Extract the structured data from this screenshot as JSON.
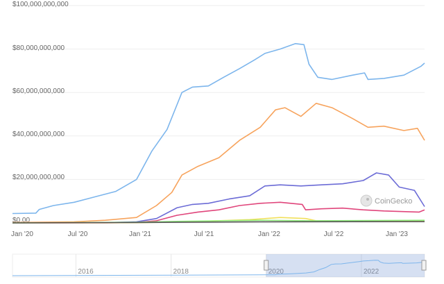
{
  "chart_data": {
    "type": "line",
    "title": "",
    "xlabel": "",
    "ylabel": "",
    "x_ticks": [
      "Jan '20",
      "Jul '20",
      "Jan '21",
      "Jul '21",
      "Jan '22",
      "Jul '22",
      "Jan '23"
    ],
    "y_ticks": [
      "$0.00",
      "$20,000,000,000",
      "$40,000,000,000",
      "$60,000,000,000",
      "$80,000,000,000",
      "$100,000,000,000"
    ],
    "ylim": [
      0,
      100000000000
    ],
    "xlim": [
      "2020-01-01",
      "2023-05-01"
    ],
    "grid": true,
    "legend": "none",
    "series": [
      {
        "color": "#7cb5ec",
        "points": [
          [
            "2020-01-01",
            4300000000.0
          ],
          [
            "2020-03-10",
            4500000000.0
          ],
          [
            "2020-03-20",
            6200000000.0
          ],
          [
            "2020-05-01",
            8000000000.0
          ],
          [
            "2020-07-01",
            9500000000.0
          ],
          [
            "2020-09-01",
            12000000000.0
          ],
          [
            "2020-11-01",
            14500000000.0
          ],
          [
            "2021-01-01",
            20000000000.0
          ],
          [
            "2021-02-15",
            33000000000.0
          ],
          [
            "2021-04-01",
            43000000000.0
          ],
          [
            "2021-05-15",
            60000000000.0
          ],
          [
            "2021-06-15",
            62500000000.0
          ],
          [
            "2021-08-01",
            63000000000.0
          ],
          [
            "2021-09-15",
            67000000000.0
          ],
          [
            "2021-11-01",
            71000000000.0
          ],
          [
            "2021-12-15",
            75000000000.0
          ],
          [
            "2022-01-15",
            78000000000.0
          ],
          [
            "2022-03-01",
            80000000000.0
          ],
          [
            "2022-04-15",
            82500000000.0
          ],
          [
            "2022-05-10",
            82000000000.0
          ],
          [
            "2022-05-25",
            73000000000.0
          ],
          [
            "2022-06-20",
            67000000000.0
          ],
          [
            "2022-08-01",
            66000000000.0
          ],
          [
            "2022-10-01",
            68000000000.0
          ],
          [
            "2022-11-05",
            69000000000.0
          ],
          [
            "2022-11-15",
            66000000000.0
          ],
          [
            "2023-01-01",
            66500000000.0
          ],
          [
            "2023-03-01",
            68000000000.0
          ],
          [
            "2023-04-20",
            72000000000.0
          ],
          [
            "2023-05-01",
            73500000000.0
          ]
        ]
      },
      {
        "color": "#f7a35c",
        "points": [
          [
            "2020-01-01",
            200000000.0
          ],
          [
            "2020-07-01",
            500000000.0
          ],
          [
            "2020-10-01",
            1200000000.0
          ],
          [
            "2021-01-01",
            2500000000.0
          ],
          [
            "2021-03-01",
            8000000000.0
          ],
          [
            "2021-04-15",
            14000000000.0
          ],
          [
            "2021-05-15",
            22000000000.0
          ],
          [
            "2021-07-01",
            26000000000.0
          ],
          [
            "2021-09-01",
            30000000000.0
          ],
          [
            "2021-11-01",
            38000000000.0
          ],
          [
            "2022-01-01",
            44000000000.0
          ],
          [
            "2022-02-15",
            52000000000.0
          ],
          [
            "2022-03-15",
            53000000000.0
          ],
          [
            "2022-05-01",
            49000000000.0
          ],
          [
            "2022-06-15",
            55000000000.0
          ],
          [
            "2022-08-01",
            53000000000.0
          ],
          [
            "2022-10-01",
            48000000000.0
          ],
          [
            "2022-11-15",
            44000000000.0
          ],
          [
            "2023-01-01",
            44500000000.0
          ],
          [
            "2023-03-01",
            42500000000.0
          ],
          [
            "2023-04-10",
            43500000000.0
          ],
          [
            "2023-05-01",
            38000000000.0
          ]
        ]
      },
      {
        "color": "#6b6bd6",
        "points": [
          [
            "2020-01-01",
            0.0
          ],
          [
            "2020-10-01",
            100000000.0
          ],
          [
            "2021-01-01",
            500000000.0
          ],
          [
            "2021-03-01",
            2000000000.0
          ],
          [
            "2021-05-01",
            7000000000.0
          ],
          [
            "2021-06-15",
            8500000000.0
          ],
          [
            "2021-08-01",
            9000000000.0
          ],
          [
            "2021-10-01",
            11000000000.0
          ],
          [
            "2021-12-01",
            12500000000.0
          ],
          [
            "2022-01-15",
            17000000000.0
          ],
          [
            "2022-03-01",
            17500000000.0
          ],
          [
            "2022-05-01",
            17000000000.0
          ],
          [
            "2022-07-01",
            17500000000.0
          ],
          [
            "2022-09-01",
            18000000000.0
          ],
          [
            "2022-11-01",
            19500000000.0
          ],
          [
            "2022-12-10",
            23000000000.0
          ],
          [
            "2023-01-15",
            22000000000.0
          ],
          [
            "2023-02-15",
            16500000000.0
          ],
          [
            "2023-04-01",
            15000000000.0
          ],
          [
            "2023-05-01",
            7500000000.0
          ]
        ]
      },
      {
        "color": "#e0457b",
        "points": [
          [
            "2020-01-01",
            0.0
          ],
          [
            "2020-10-01",
            0.0
          ],
          [
            "2021-01-01",
            200000000.0
          ],
          [
            "2021-03-01",
            1000000000.0
          ],
          [
            "2021-05-01",
            3500000000.0
          ],
          [
            "2021-07-01",
            5000000000.0
          ],
          [
            "2021-09-01",
            6000000000.0
          ],
          [
            "2021-11-01",
            8000000000.0
          ],
          [
            "2022-01-01",
            9000000000.0
          ],
          [
            "2022-03-01",
            9500000000.0
          ],
          [
            "2022-05-05",
            8500000000.0
          ],
          [
            "2022-05-15",
            6000000000.0
          ],
          [
            "2022-07-01",
            6500000000.0
          ],
          [
            "2022-09-01",
            6800000000.0
          ],
          [
            "2022-11-01",
            6000000000.0
          ],
          [
            "2023-01-01",
            5500000000.0
          ],
          [
            "2023-04-15",
            5000000000.0
          ],
          [
            "2023-05-01",
            6000000000.0
          ]
        ]
      },
      {
        "color": "#f1e05a",
        "points": [
          [
            "2020-01-01",
            0.0
          ],
          [
            "2021-01-01",
            100000000.0
          ],
          [
            "2021-06-01",
            500000000.0
          ],
          [
            "2021-12-01",
            1500000000.0
          ],
          [
            "2022-03-01",
            2500000000.0
          ],
          [
            "2022-05-15",
            2000000000.0
          ],
          [
            "2022-06-15",
            1000000000.0
          ],
          [
            "2023-05-01",
            800000000.0
          ]
        ]
      },
      {
        "color": "#90ed7d",
        "points": [
          [
            "2020-01-01",
            0.0
          ],
          [
            "2021-01-01",
            300000000.0
          ],
          [
            "2021-06-01",
            800000000.0
          ],
          [
            "2022-01-01",
            1200000000.0
          ],
          [
            "2022-06-01",
            1000000000.0
          ],
          [
            "2023-05-01",
            1200000000.0
          ]
        ]
      },
      {
        "color": "#555555",
        "points": [
          [
            "2020-01-01",
            0.0
          ],
          [
            "2021-01-01",
            200000000.0
          ],
          [
            "2022-01-01",
            500000000.0
          ],
          [
            "2023-05-01",
            600000000.0
          ]
        ]
      }
    ],
    "navigator": {
      "x_ticks": [
        "2016",
        "2018",
        "2020",
        "2022"
      ],
      "range": [
        "2014-09-01",
        "2023-05-01"
      ],
      "selected": [
        "2020-01-01",
        "2023-05-01"
      ]
    }
  },
  "watermark": {
    "text": "CoinGecko"
  }
}
